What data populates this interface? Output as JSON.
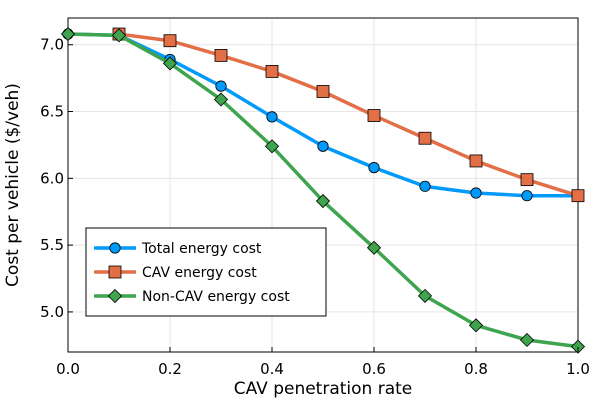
{
  "chart_data": {
    "type": "line",
    "title": "",
    "xlabel": "CAV penetration rate",
    "ylabel": "Cost per vehicle ($/veh)",
    "xlim": [
      0.0,
      1.0
    ],
    "ylim": [
      4.7,
      7.2
    ],
    "xticks": [
      0.0,
      0.2,
      0.4,
      0.6,
      0.8,
      1.0
    ],
    "xtick_labels": [
      "0.0",
      "0.2",
      "0.4",
      "0.6",
      "0.8",
      "1.0"
    ],
    "yticks": [
      5.0,
      5.5,
      6.0,
      6.5,
      7.0
    ],
    "ytick_labels": [
      "5.0",
      "5.5",
      "6.0",
      "6.5",
      "7.0"
    ],
    "grid": true,
    "legend_position": "bottom-left",
    "x": [
      0.0,
      0.1,
      0.2,
      0.3,
      0.4,
      0.5,
      0.6,
      0.7,
      0.8,
      0.9,
      1.0
    ],
    "series": [
      {
        "name": "Total energy cost",
        "color": "#009AFA",
        "marker": "circle",
        "values": [
          7.08,
          7.07,
          6.89,
          6.69,
          6.46,
          6.24,
          6.08,
          5.94,
          5.89,
          5.87,
          5.87
        ]
      },
      {
        "name": "CAV energy cost",
        "color": "#E26F46",
        "marker": "square",
        "values": [
          null,
          7.08,
          7.03,
          6.92,
          6.8,
          6.65,
          6.47,
          6.3,
          6.13,
          5.99,
          5.87
        ]
      },
      {
        "name": "Non-CAV energy cost",
        "color": "#3EA44E",
        "marker": "diamond",
        "values": [
          7.08,
          7.07,
          6.86,
          6.59,
          6.24,
          5.83,
          5.48,
          5.12,
          4.9,
          4.79,
          4.74
        ]
      }
    ]
  }
}
